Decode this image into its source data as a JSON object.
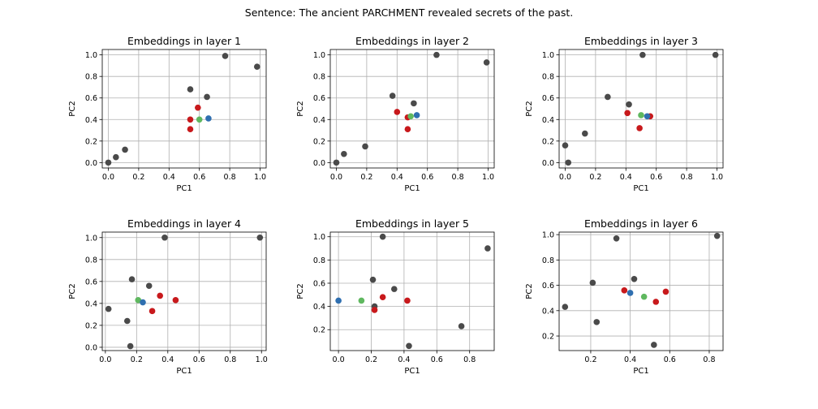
{
  "figure": {
    "suptitle": "Sentence: The ancient PARCHMENT revealed secrets of the past."
  },
  "colors": {
    "gray": "#4a4a4a",
    "red": "#c8191c",
    "green": "#5fb85f",
    "blue": "#2f6fb0"
  },
  "chart_data": [
    {
      "type": "scatter",
      "title": "Embeddings in layer 1",
      "xlabel": "PC1",
      "ylabel": "PC2",
      "xlim": [
        -0.04,
        1.04
      ],
      "ylim": [
        -0.05,
        1.05
      ],
      "grid": true,
      "xticks": [
        0.0,
        0.2,
        0.4,
        0.6,
        0.8,
        1.0
      ],
      "yticks": [
        0.0,
        0.2,
        0.4,
        0.6,
        0.8,
        1.0
      ],
      "tick_format": 1,
      "points": [
        {
          "x": 0.0,
          "y": 0.0,
          "color": "gray"
        },
        {
          "x": 0.05,
          "y": 0.05,
          "color": "gray"
        },
        {
          "x": 0.11,
          "y": 0.12,
          "color": "gray"
        },
        {
          "x": 0.54,
          "y": 0.68,
          "color": "gray"
        },
        {
          "x": 0.65,
          "y": 0.61,
          "color": "gray"
        },
        {
          "x": 0.77,
          "y": 0.99,
          "color": "gray"
        },
        {
          "x": 0.98,
          "y": 0.89,
          "color": "gray"
        },
        {
          "x": 0.59,
          "y": 0.51,
          "color": "red"
        },
        {
          "x": 0.54,
          "y": 0.4,
          "color": "red"
        },
        {
          "x": 0.54,
          "y": 0.31,
          "color": "red"
        },
        {
          "x": 0.6,
          "y": 0.4,
          "color": "green"
        },
        {
          "x": 0.66,
          "y": 0.41,
          "color": "blue"
        }
      ]
    },
    {
      "type": "scatter",
      "title": "Embeddings in layer 2",
      "xlabel": "PC1",
      "ylabel": "PC2",
      "xlim": [
        -0.04,
        1.04
      ],
      "ylim": [
        -0.05,
        1.05
      ],
      "grid": true,
      "xticks": [
        0.0,
        0.2,
        0.4,
        0.6,
        0.8,
        1.0
      ],
      "yticks": [
        0.0,
        0.2,
        0.4,
        0.6,
        0.8,
        1.0
      ],
      "tick_format": 1,
      "points": [
        {
          "x": 0.0,
          "y": 0.0,
          "color": "gray"
        },
        {
          "x": 0.05,
          "y": 0.08,
          "color": "gray"
        },
        {
          "x": 0.19,
          "y": 0.15,
          "color": "gray"
        },
        {
          "x": 0.37,
          "y": 0.62,
          "color": "gray"
        },
        {
          "x": 0.51,
          "y": 0.55,
          "color": "gray"
        },
        {
          "x": 0.66,
          "y": 1.0,
          "color": "gray"
        },
        {
          "x": 0.99,
          "y": 0.93,
          "color": "gray"
        },
        {
          "x": 0.4,
          "y": 0.47,
          "color": "red"
        },
        {
          "x": 0.47,
          "y": 0.42,
          "color": "red"
        },
        {
          "x": 0.47,
          "y": 0.31,
          "color": "red"
        },
        {
          "x": 0.49,
          "y": 0.43,
          "color": "green"
        },
        {
          "x": 0.53,
          "y": 0.44,
          "color": "blue"
        }
      ]
    },
    {
      "type": "scatter",
      "title": "Embeddings in layer 3",
      "xlabel": "PC1",
      "ylabel": "PC2",
      "xlim": [
        -0.04,
        1.04
      ],
      "ylim": [
        -0.05,
        1.05
      ],
      "grid": true,
      "xticks": [
        0.0,
        0.2,
        0.4,
        0.6,
        0.8,
        1.0
      ],
      "yticks": [
        0.0,
        0.2,
        0.4,
        0.6,
        0.8,
        1.0
      ],
      "tick_format": 1,
      "points": [
        {
          "x": 0.0,
          "y": 0.16,
          "color": "gray"
        },
        {
          "x": 0.02,
          "y": 0.0,
          "color": "gray"
        },
        {
          "x": 0.13,
          "y": 0.27,
          "color": "gray"
        },
        {
          "x": 0.28,
          "y": 0.61,
          "color": "gray"
        },
        {
          "x": 0.42,
          "y": 0.54,
          "color": "gray"
        },
        {
          "x": 0.51,
          "y": 1.0,
          "color": "gray"
        },
        {
          "x": 0.99,
          "y": 1.0,
          "color": "gray"
        },
        {
          "x": 0.41,
          "y": 0.46,
          "color": "red"
        },
        {
          "x": 0.56,
          "y": 0.43,
          "color": "red"
        },
        {
          "x": 0.49,
          "y": 0.32,
          "color": "red"
        },
        {
          "x": 0.5,
          "y": 0.44,
          "color": "green"
        },
        {
          "x": 0.54,
          "y": 0.43,
          "color": "blue"
        }
      ]
    },
    {
      "type": "scatter",
      "title": "Embeddings in layer 4",
      "xlabel": "PC1",
      "ylabel": "PC2",
      "xlim": [
        -0.02,
        1.03
      ],
      "ylim": [
        -0.03,
        1.05
      ],
      "grid": true,
      "xticks": [
        0.0,
        0.2,
        0.4,
        0.6,
        0.8,
        1.0
      ],
      "yticks": [
        0.0,
        0.2,
        0.4,
        0.6,
        0.8,
        1.0
      ],
      "tick_format": 1,
      "points": [
        {
          "x": 0.02,
          "y": 0.35,
          "color": "gray"
        },
        {
          "x": 0.14,
          "y": 0.24,
          "color": "gray"
        },
        {
          "x": 0.16,
          "y": 0.01,
          "color": "gray"
        },
        {
          "x": 0.17,
          "y": 0.62,
          "color": "gray"
        },
        {
          "x": 0.28,
          "y": 0.56,
          "color": "gray"
        },
        {
          "x": 0.38,
          "y": 1.0,
          "color": "gray"
        },
        {
          "x": 0.99,
          "y": 1.0,
          "color": "gray"
        },
        {
          "x": 0.35,
          "y": 0.47,
          "color": "red"
        },
        {
          "x": 0.45,
          "y": 0.43,
          "color": "red"
        },
        {
          "x": 0.3,
          "y": 0.33,
          "color": "red"
        },
        {
          "x": 0.21,
          "y": 0.43,
          "color": "green"
        },
        {
          "x": 0.24,
          "y": 0.41,
          "color": "blue"
        }
      ]
    },
    {
      "type": "scatter",
      "title": "Embeddings in layer 5",
      "xlabel": "PC1",
      "ylabel": "PC2",
      "xlim": [
        -0.05,
        0.95
      ],
      "ylim": [
        0.02,
        1.04
      ],
      "grid": true,
      "xticks": [
        0.0,
        0.2,
        0.4,
        0.6,
        0.8
      ],
      "yticks": [
        0.2,
        0.4,
        0.6,
        0.8,
        1.0
      ],
      "tick_format": 1,
      "points": [
        {
          "x": 0.27,
          "y": 1.0,
          "color": "gray"
        },
        {
          "x": 0.21,
          "y": 0.63,
          "color": "gray"
        },
        {
          "x": 0.34,
          "y": 0.55,
          "color": "gray"
        },
        {
          "x": 0.22,
          "y": 0.4,
          "color": "gray"
        },
        {
          "x": 0.43,
          "y": 0.06,
          "color": "gray"
        },
        {
          "x": 0.75,
          "y": 0.23,
          "color": "gray"
        },
        {
          "x": 0.91,
          "y": 0.9,
          "color": "gray"
        },
        {
          "x": 0.27,
          "y": 0.48,
          "color": "red"
        },
        {
          "x": 0.42,
          "y": 0.45,
          "color": "red"
        },
        {
          "x": 0.22,
          "y": 0.37,
          "color": "red"
        },
        {
          "x": 0.14,
          "y": 0.45,
          "color": "green"
        },
        {
          "x": 0.0,
          "y": 0.45,
          "color": "blue"
        }
      ]
    },
    {
      "type": "scatter",
      "title": "Embeddings in layer 6",
      "xlabel": "PC1",
      "ylabel": "PC2",
      "xlim": [
        0.04,
        0.87
      ],
      "ylim": [
        0.085,
        1.02
      ],
      "grid": true,
      "xticks": [
        0.2,
        0.4,
        0.6,
        0.8
      ],
      "yticks": [
        0.2,
        0.4,
        0.6,
        0.8,
        1.0
      ],
      "tick_format": 1,
      "points": [
        {
          "x": 0.07,
          "y": 0.43,
          "color": "gray"
        },
        {
          "x": 0.21,
          "y": 0.62,
          "color": "gray"
        },
        {
          "x": 0.23,
          "y": 0.31,
          "color": "gray"
        },
        {
          "x": 0.33,
          "y": 0.97,
          "color": "gray"
        },
        {
          "x": 0.42,
          "y": 0.65,
          "color": "gray"
        },
        {
          "x": 0.52,
          "y": 0.13,
          "color": "gray"
        },
        {
          "x": 0.84,
          "y": 0.99,
          "color": "gray"
        },
        {
          "x": 0.37,
          "y": 0.56,
          "color": "red"
        },
        {
          "x": 0.53,
          "y": 0.47,
          "color": "red"
        },
        {
          "x": 0.58,
          "y": 0.55,
          "color": "red"
        },
        {
          "x": 0.47,
          "y": 0.51,
          "color": "green"
        },
        {
          "x": 0.4,
          "y": 0.54,
          "color": "blue"
        }
      ]
    }
  ]
}
